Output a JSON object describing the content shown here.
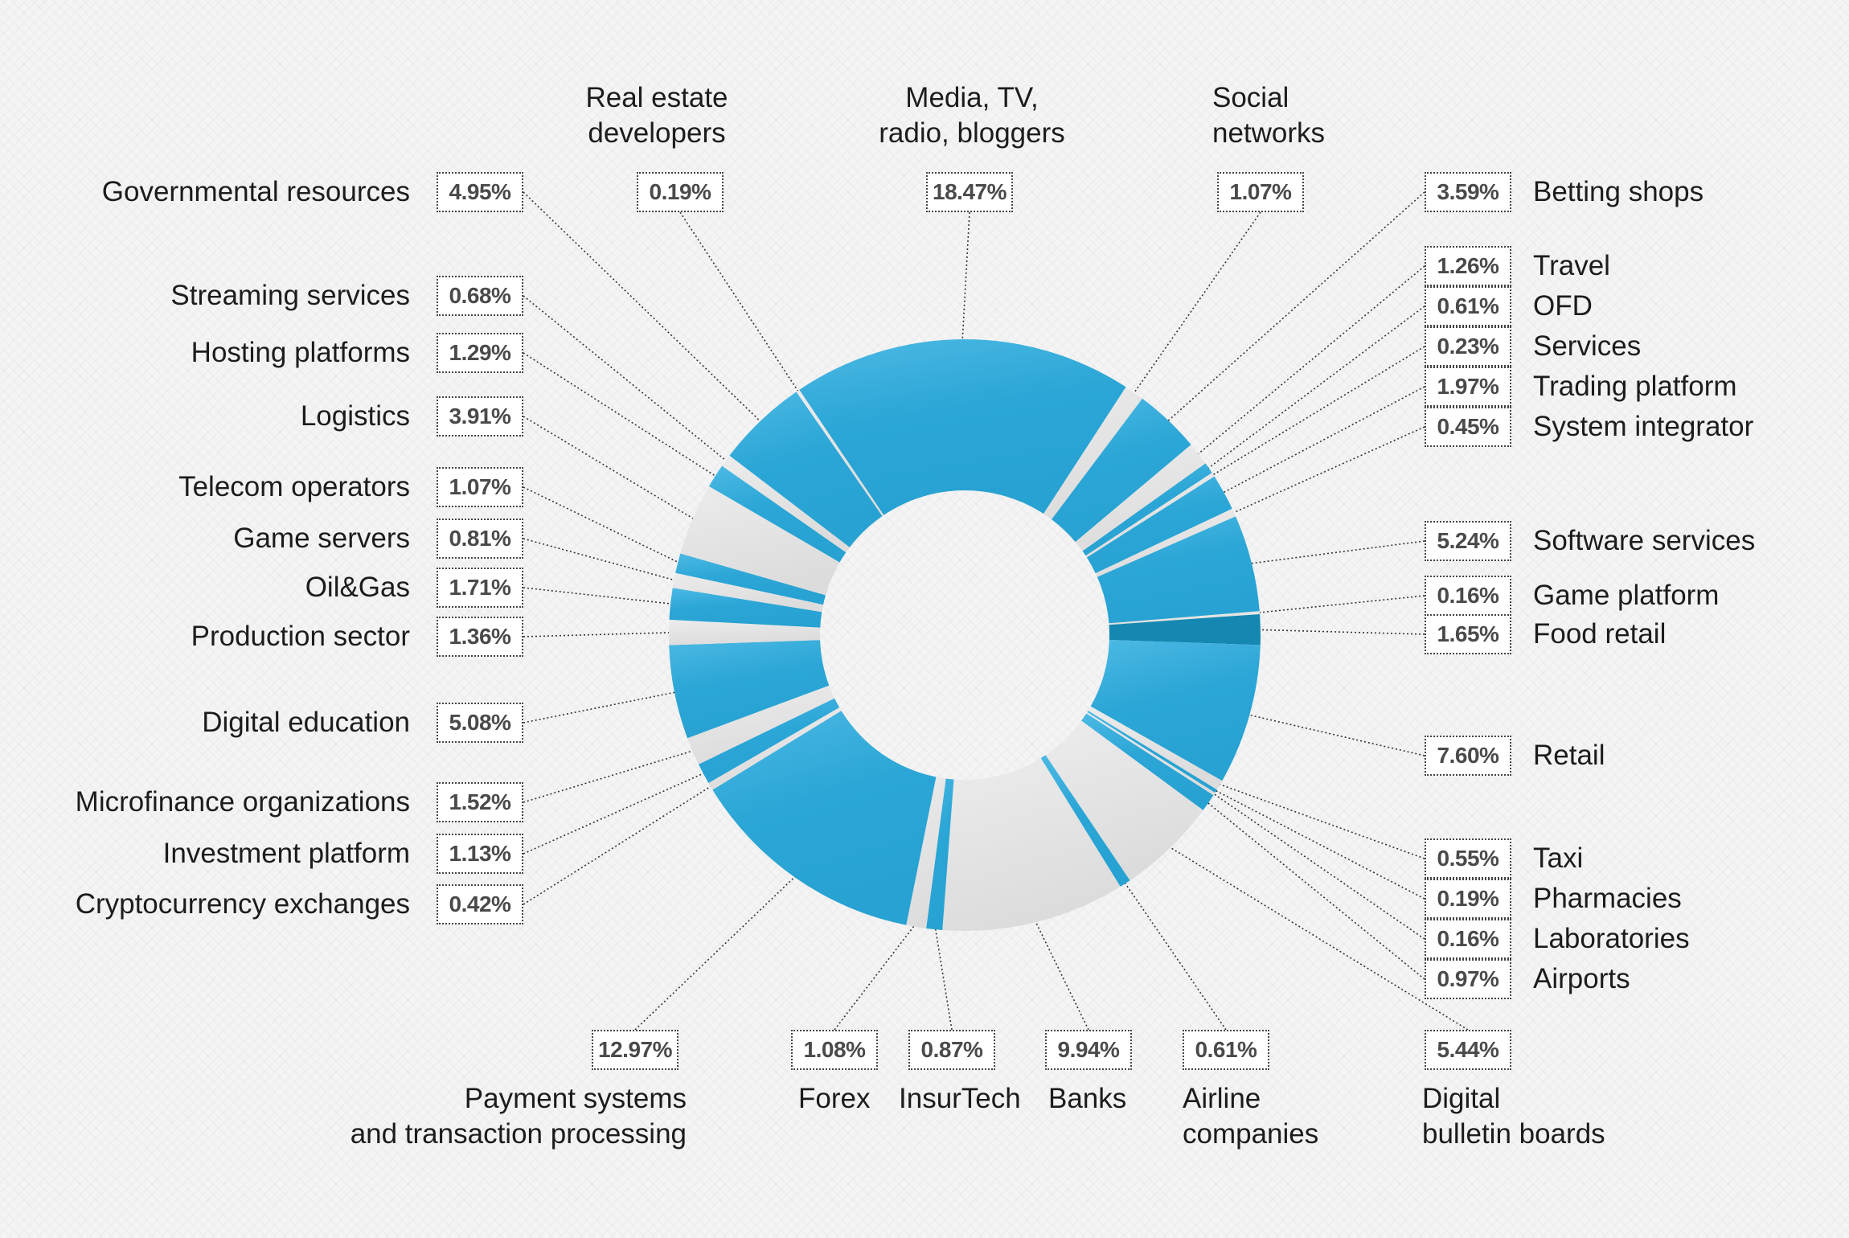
{
  "chart_data": {
    "type": "pie",
    "variant": "donut",
    "title": "",
    "colors": {
      "blue": "#2ba6d6",
      "blue_light": "#4cb9e4",
      "gray": "#e6e6e6",
      "dark": "#1588b2"
    },
    "slices": [
      {
        "label": "Media, TV,\nradio, bloggers",
        "value": 18.47,
        "display": "18.47%",
        "fill": "blue"
      },
      {
        "label": "Social\nnetworks",
        "value": 1.07,
        "display": "1.07%",
        "fill": "gray"
      },
      {
        "label": "Betting shops",
        "value": 3.59,
        "display": "3.59%",
        "fill": "blue"
      },
      {
        "label": "Travel",
        "value": 1.26,
        "display": "1.26%",
        "fill": "gray"
      },
      {
        "label": "OFD",
        "value": 0.61,
        "display": "0.61%",
        "fill": "blue"
      },
      {
        "label": "Services",
        "value": 0.23,
        "display": "0.23%",
        "fill": "gray"
      },
      {
        "label": "Trading platform",
        "value": 1.97,
        "display": "1.97%",
        "fill": "blue"
      },
      {
        "label": "System integrator",
        "value": 0.45,
        "display": "0.45%",
        "fill": "gray"
      },
      {
        "label": "Software services",
        "value": 5.24,
        "display": "5.24%",
        "fill": "blue"
      },
      {
        "label": "Game platform",
        "value": 0.16,
        "display": "0.16%",
        "fill": "gray"
      },
      {
        "label": "Food retail",
        "value": 1.65,
        "display": "1.65%",
        "fill": "dark"
      },
      {
        "label": "Retail",
        "value": 7.6,
        "display": "7.60%",
        "fill": "blue"
      },
      {
        "label": "Taxi",
        "value": 0.55,
        "display": "0.55%",
        "fill": "gray"
      },
      {
        "label": "Pharmacies",
        "value": 0.19,
        "display": "0.19%",
        "fill": "blue"
      },
      {
        "label": "Laboratories",
        "value": 0.16,
        "display": "0.16%",
        "fill": "gray"
      },
      {
        "label": "Airports",
        "value": 0.97,
        "display": "0.97%",
        "fill": "blue"
      },
      {
        "label": "Digital\nbulletin boards",
        "value": 5.44,
        "display": "5.44%",
        "fill": "gray"
      },
      {
        "label": "Airline\ncompanies",
        "value": 0.61,
        "display": "0.61%",
        "fill": "blue"
      },
      {
        "label": "Banks",
        "value": 9.94,
        "display": "9.94%",
        "fill": "gray"
      },
      {
        "label": "InsurTech",
        "value": 0.87,
        "display": "0.87%",
        "fill": "blue"
      },
      {
        "label": "Forex",
        "value": 1.08,
        "display": "1.08%",
        "fill": "gray"
      },
      {
        "label": "Payment systems\nand transaction processing",
        "value": 12.97,
        "display": "12.97%",
        "fill": "blue"
      },
      {
        "label": "Cryptocurrency exchanges",
        "value": 0.42,
        "display": "0.42%",
        "fill": "gray"
      },
      {
        "label": "Investment platform",
        "value": 1.13,
        "display": "1.13%",
        "fill": "blue"
      },
      {
        "label": "Microfinance organizations",
        "value": 1.52,
        "display": "1.52%",
        "fill": "gray"
      },
      {
        "label": "Digital education",
        "value": 5.08,
        "display": "5.08%",
        "fill": "blue"
      },
      {
        "label": "Production sector",
        "value": 1.36,
        "display": "1.36%",
        "fill": "gray"
      },
      {
        "label": "Oil&Gas",
        "value": 1.71,
        "display": "1.71%",
        "fill": "blue"
      },
      {
        "label": "Game servers",
        "value": 0.81,
        "display": "0.81%",
        "fill": "gray"
      },
      {
        "label": "Telecom operators",
        "value": 1.07,
        "display": "1.07%",
        "fill": "blue"
      },
      {
        "label": "Logistics",
        "value": 3.91,
        "display": "3.91%",
        "fill": "gray"
      },
      {
        "label": "Hosting platforms",
        "value": 1.29,
        "display": "1.29%",
        "fill": "blue"
      },
      {
        "label": "Streaming services",
        "value": 0.68,
        "display": "0.68%",
        "fill": "gray"
      },
      {
        "label": "Governmental resources",
        "value": 4.95,
        "display": "4.95%",
        "fill": "blue"
      },
      {
        "label": "Real estate\ndevelopers",
        "value": 0.19,
        "display": "0.19%",
        "fill": "gray"
      }
    ]
  }
}
